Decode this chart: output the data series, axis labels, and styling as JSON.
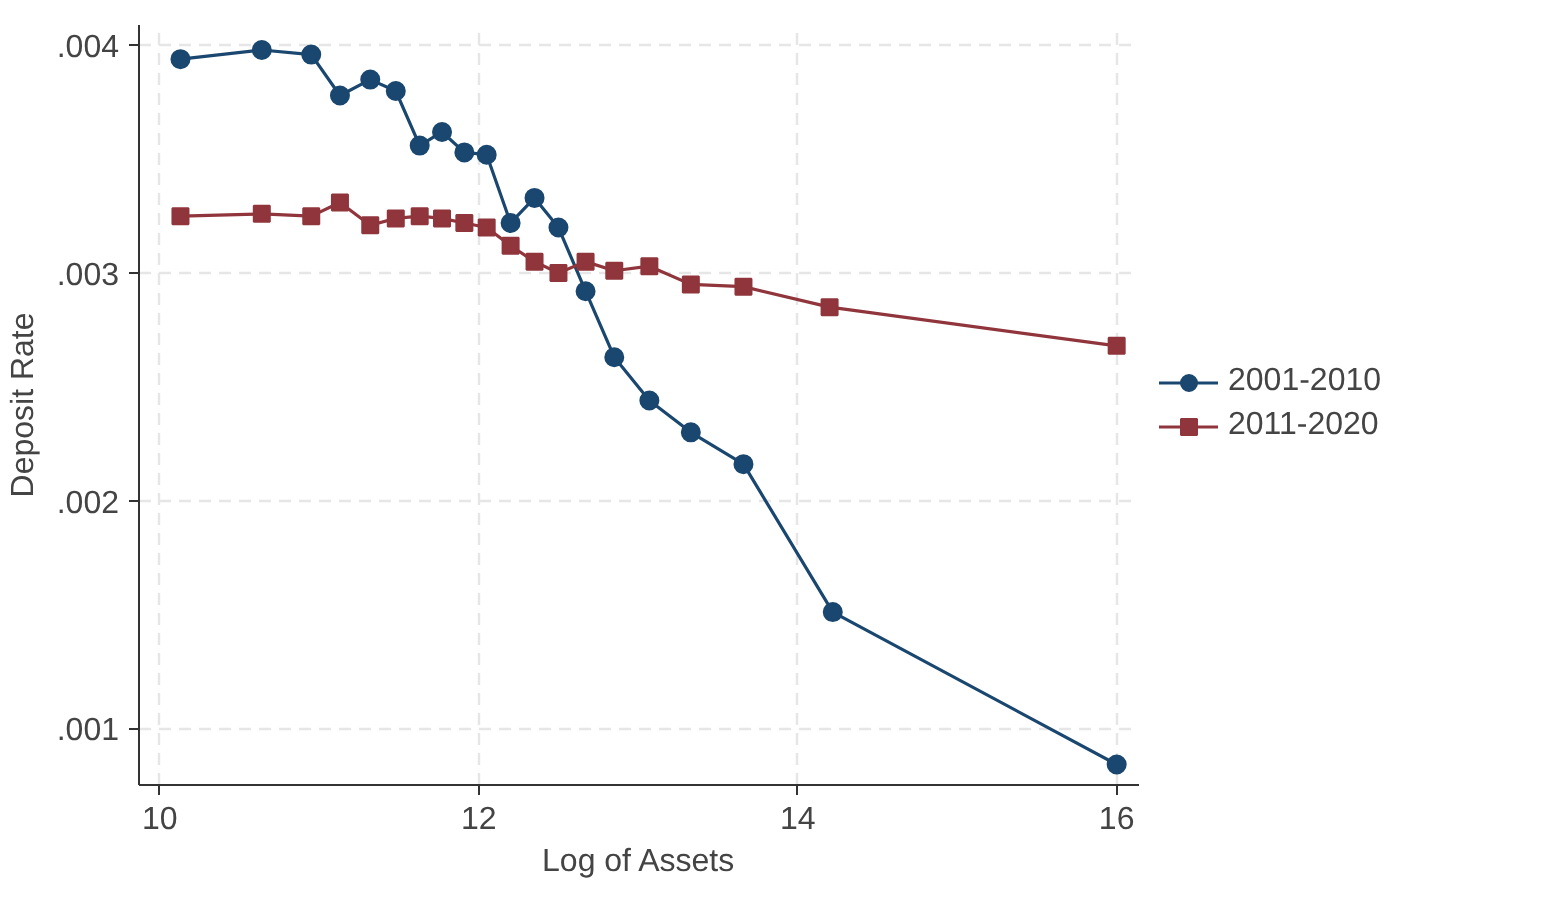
{
  "chart_data": {
    "type": "line",
    "xlabel": "Log of Assets",
    "ylabel": "Deposit Rate",
    "xlim": [
      9.87,
      16.14
    ],
    "ylim": [
      0.00075,
      0.00409
    ],
    "xticks": [
      10,
      12,
      14,
      16
    ],
    "yticks": [
      {
        "value": 0.001,
        "label": ".001"
      },
      {
        "value": 0.002,
        "label": ".002"
      },
      {
        "value": 0.003,
        "label": ".003"
      },
      {
        "value": 0.004,
        "label": ".004"
      }
    ],
    "grid": true,
    "legend": "right",
    "line_style": "solid",
    "series": [
      {
        "name": "2001-2010",
        "color": "#1a476f",
        "marker": "circle",
        "x": [
          10.13,
          10.64,
          10.95,
          11.13,
          11.32,
          11.48,
          11.63,
          11.77,
          11.91,
          12.05,
          12.2,
          12.35,
          12.5,
          12.67,
          12.85,
          13.07,
          13.33,
          13.66,
          14.22,
          16
        ],
        "values": [
          0.00394,
          0.00398,
          0.00396,
          0.00378,
          0.00385,
          0.0038,
          0.00356,
          0.00362,
          0.00353,
          0.00352,
          0.00322,
          0.00333,
          0.0032,
          0.00292,
          0.00263,
          0.00244,
          0.0023,
          0.00216,
          0.00151,
          0.00084
        ]
      },
      {
        "name": "2011-2020",
        "color": "#90353b",
        "marker": "square",
        "x": [
          10.13,
          10.64,
          10.95,
          11.13,
          11.32,
          11.48,
          11.63,
          11.77,
          11.91,
          12.05,
          12.2,
          12.35,
          12.5,
          12.67,
          12.85,
          13.07,
          13.33,
          13.66,
          14.2,
          16
        ],
        "values": [
          0.00325,
          0.00326,
          0.00325,
          0.00331,
          0.00321,
          0.00324,
          0.00325,
          0.00324,
          0.00322,
          0.0032,
          0.00312,
          0.00305,
          0.003,
          0.00305,
          0.00301,
          0.00303,
          0.00295,
          0.00294,
          0.00285,
          0.00268
        ]
      }
    ]
  }
}
